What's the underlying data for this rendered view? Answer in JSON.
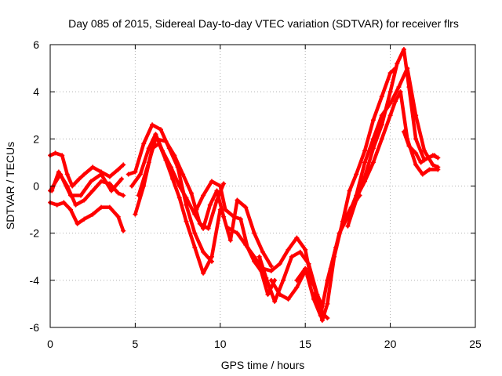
{
  "chart_data": {
    "type": "line",
    "title": "Day 085 of 2015, Sidereal Day-to-day VTEC variation (SDTVAR) for receiver flrs",
    "xlabel": "GPS time / hours",
    "ylabel": "SDTVAR / TECUs",
    "xlim": [
      0,
      25
    ],
    "ylim": [
      -6,
      6
    ],
    "xticks": [
      "0",
      "5",
      "10",
      "15",
      "20",
      "25"
    ],
    "yticks": [
      "-6",
      "-4",
      "-2",
      "0",
      "2",
      "4",
      "6"
    ],
    "grid": true,
    "marker": "plus",
    "color": "#ff0000",
    "series": [
      {
        "x": [
          0.0,
          0.3,
          0.7,
          1.0,
          1.3,
          1.7,
          2.0,
          2.5,
          3.0,
          3.5,
          4.0,
          4.3
        ],
        "y": [
          1.3,
          1.4,
          1.3,
          0.5,
          0.0,
          0.3,
          0.5,
          0.8,
          0.6,
          0.4,
          0.7,
          0.9
        ]
      },
      {
        "x": [
          0.1,
          0.5,
          1.0,
          1.5,
          2.0,
          2.5,
          3.0,
          3.5,
          4.0,
          4.3
        ],
        "y": [
          -0.2,
          0.6,
          0.0,
          -0.8,
          -0.6,
          -0.2,
          0.2,
          0.1,
          -0.3,
          -0.4
        ]
      },
      {
        "x": [
          0.0,
          0.4,
          0.8,
          1.2,
          1.6,
          2.0,
          2.5,
          3.0,
          3.5,
          4.0,
          4.3
        ],
        "y": [
          -0.7,
          -0.8,
          -0.7,
          -1.0,
          -1.6,
          -1.4,
          -1.2,
          -0.9,
          -0.9,
          -1.3,
          -1.9
        ]
      },
      {
        "x": [
          0.0,
          0.6,
          1.2,
          1.8,
          2.4,
          3.0,
          3.6,
          4.2
        ],
        "y": [
          -0.2,
          0.5,
          -0.4,
          -0.4,
          0.2,
          0.5,
          -0.2,
          0.3
        ]
      },
      {
        "x": [
          4.6,
          5.0,
          5.5,
          6.0,
          6.5,
          7.0,
          7.5,
          8.0,
          8.5,
          9.0,
          9.5
        ],
        "y": [
          0.5,
          0.6,
          1.8,
          2.6,
          2.4,
          1.6,
          0.8,
          -0.8,
          -2.0,
          -2.8,
          -3.2
        ]
      },
      {
        "x": [
          4.8,
          5.3,
          5.8,
          6.2,
          6.6,
          7.1,
          7.6,
          8.0,
          8.5,
          9.0
        ],
        "y": [
          0.0,
          0.5,
          1.6,
          2.2,
          1.5,
          0.8,
          0.0,
          -0.5,
          -1.2,
          -1.8
        ]
      },
      {
        "x": [
          5.0,
          5.5,
          6.0,
          6.4,
          6.8,
          7.2,
          7.6,
          8.0,
          8.5,
          9.0,
          9.5,
          10.0
        ],
        "y": [
          -1.2,
          0.0,
          1.6,
          1.8,
          1.1,
          0.3,
          -0.5,
          -1.5,
          -2.6,
          -3.7,
          -3.0,
          -1.0
        ]
      },
      {
        "x": [
          5.2,
          5.8,
          6.2,
          6.8,
          7.3,
          7.8,
          8.3,
          8.8,
          9.3,
          9.8,
          10.2
        ],
        "y": [
          -0.4,
          1.0,
          2.0,
          1.9,
          1.3,
          0.5,
          -0.3,
          -1.6,
          -1.8,
          -0.6,
          0.1
        ]
      },
      {
        "x": [
          8.6,
          9.0,
          9.5,
          10.0,
          10.3,
          10.8,
          11.2,
          11.6,
          12.0,
          12.4,
          12.8,
          13.2
        ],
        "y": [
          -1.0,
          -0.4,
          0.2,
          0.0,
          -1.0,
          -1.3,
          -1.4,
          -2.6,
          -3.2,
          -3.6,
          -4.6,
          -4.0
        ]
      },
      {
        "x": [
          9.0,
          9.4,
          9.8,
          10.2,
          10.6,
          11.0,
          11.5,
          12.0,
          12.5,
          13.0
        ],
        "y": [
          -1.8,
          -0.8,
          -0.2,
          -1.3,
          -2.3,
          -0.6,
          -0.9,
          -2.0,
          -2.8,
          -3.4
        ]
      },
      {
        "x": [
          10.5,
          11.0,
          11.5,
          12.0,
          12.5,
          13.0,
          13.5,
          14.0,
          14.5,
          15.0,
          15.3
        ],
        "y": [
          -1.8,
          -2.0,
          -2.5,
          -3.0,
          -3.5,
          -3.6,
          -3.3,
          -2.7,
          -2.2,
          -2.7,
          -3.8
        ]
      },
      {
        "x": [
          12.3,
          12.7,
          13.2,
          13.7,
          14.2,
          14.7,
          15.2,
          15.7,
          16.0
        ],
        "y": [
          -3.0,
          -3.9,
          -4.9,
          -4.0,
          -3.0,
          -2.8,
          -3.3,
          -4.6,
          -5.1
        ]
      },
      {
        "x": [
          13.0,
          13.5,
          14.0,
          14.5,
          15.0,
          15.5,
          16.0,
          16.3
        ],
        "y": [
          -4.0,
          -4.6,
          -4.8,
          -4.3,
          -3.6,
          -4.2,
          -5.4,
          -5.6
        ]
      },
      {
        "x": [
          14.5,
          15.0,
          15.5,
          15.9,
          16.3,
          16.8,
          17.2,
          17.7,
          18.2
        ],
        "y": [
          -4.0,
          -3.5,
          -4.8,
          -5.5,
          -4.0,
          -2.6,
          -1.6,
          -0.9,
          -0.4
        ]
      },
      {
        "x": [
          15.5,
          15.8,
          16.0,
          16.3,
          16.7,
          17.2,
          17.6,
          18.0,
          18.5,
          19.0,
          19.5,
          20.0,
          20.3
        ],
        "y": [
          -4.6,
          -5.2,
          -5.7,
          -5.0,
          -3.0,
          -1.5,
          -0.2,
          0.5,
          1.5,
          2.8,
          3.8,
          4.8,
          5.0
        ]
      },
      {
        "x": [
          16.5,
          17.0,
          17.5,
          18.0,
          18.5,
          19.0,
          19.5,
          20.0,
          20.5,
          21.0,
          21.5,
          22.0,
          22.5,
          22.8
        ],
        "y": [
          -3.5,
          -2.0,
          -1.3,
          -0.4,
          1.0,
          2.0,
          3.0,
          3.5,
          4.2,
          5.0,
          3.0,
          1.5,
          0.9,
          0.8
        ]
      },
      {
        "x": [
          17.5,
          18.0,
          18.5,
          19.0,
          19.5,
          20.0,
          20.4,
          20.8,
          21.1,
          21.5,
          22.0,
          22.5,
          22.8
        ],
        "y": [
          -1.7,
          -0.6,
          0.4,
          1.6,
          2.6,
          4.0,
          5.2,
          5.8,
          4.2,
          2.0,
          1.1,
          1.3,
          1.2
        ]
      },
      {
        "x": [
          18.0,
          18.5,
          19.0,
          19.5,
          20.0,
          20.3,
          20.6,
          21.0,
          21.5,
          21.9,
          22.3,
          22.8
        ],
        "y": [
          -0.5,
          0.2,
          1.0,
          2.0,
          3.0,
          3.6,
          4.0,
          2.0,
          0.9,
          0.5,
          0.7,
          0.7
        ]
      },
      {
        "x": [
          20.8,
          21.1,
          21.5,
          21.8,
          22.2,
          22.6
        ],
        "y": [
          2.3,
          1.7,
          1.4,
          1.0,
          1.2,
          1.3
        ]
      }
    ]
  }
}
